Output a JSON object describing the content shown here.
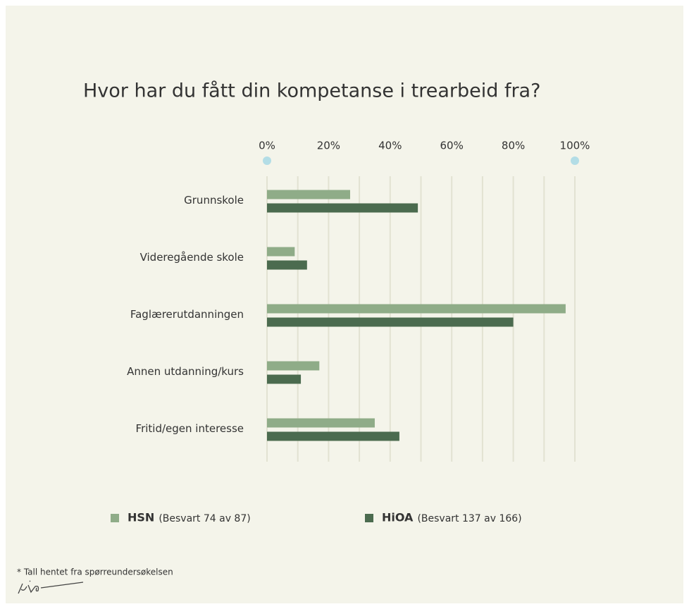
{
  "chart_data": {
    "type": "hbar",
    "title": "Hvor har du fått din kompetanse i trearbeid fra?",
    "categories": [
      "Grunnskole",
      "Videregående skole",
      "Faglærerutdanningen",
      "Annen utdanning/kurs",
      "Fritid/egen interesse"
    ],
    "series": [
      {
        "name": "HSN",
        "note": "(Besvart 74 av 87)",
        "color": "#8fac88",
        "values": [
          27,
          9,
          97,
          17,
          35
        ]
      },
      {
        "name": "HiOA",
        "note": "(Besvart 137 av 166)",
        "color": "#4b6b4f",
        "values": [
          49,
          13,
          80,
          11,
          43
        ]
      }
    ],
    "xlim": [
      0,
      100
    ],
    "xticks": [
      {
        "value": 0,
        "label": "0%"
      },
      {
        "value": 20,
        "label": "20%"
      },
      {
        "value": 40,
        "label": "40%"
      },
      {
        "value": 60,
        "label": "60%"
      },
      {
        "value": 80,
        "label": "80%"
      },
      {
        "value": 100,
        "label": "100%"
      }
    ],
    "xminorticks": [
      10,
      30,
      50,
      70,
      90
    ],
    "grid": true,
    "footnote": "* Tall hentet fra spørreundersøkelsen"
  }
}
